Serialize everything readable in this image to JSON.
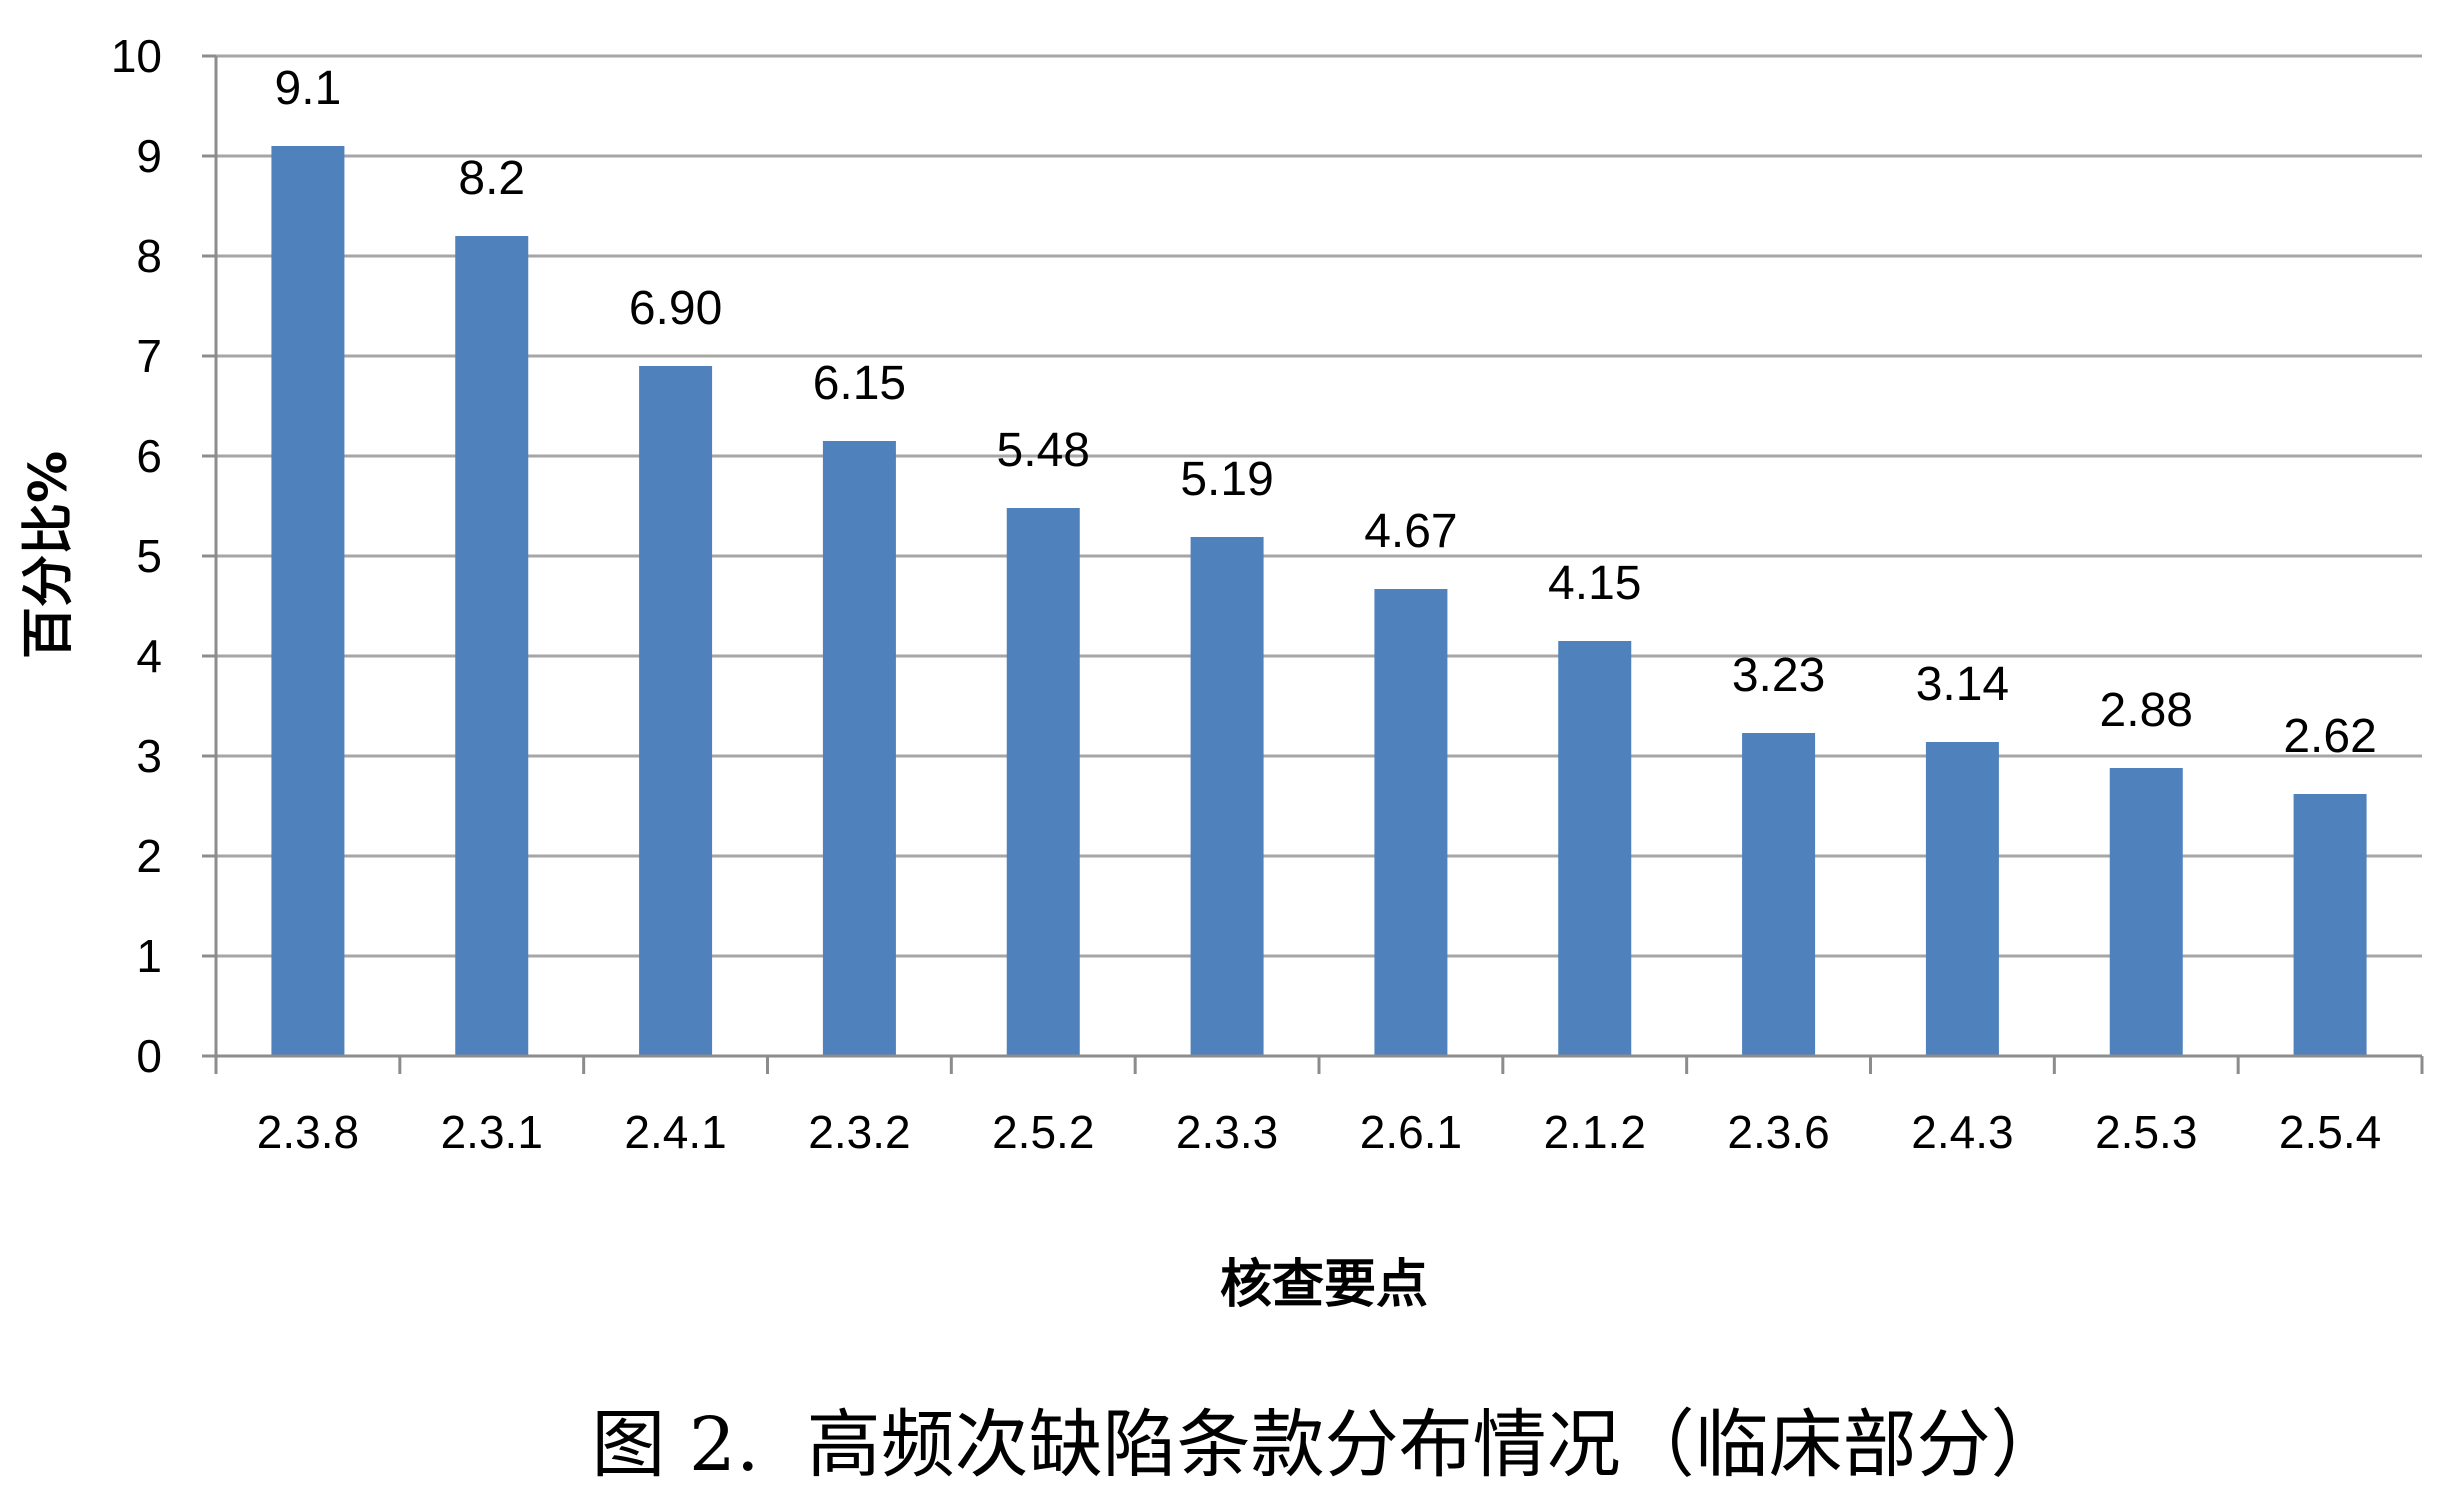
{
  "chart_data": {
    "type": "bar",
    "categories": [
      "2.3.8",
      "2.3.1",
      "2.4.1",
      "2.3.2",
      "2.5.2",
      "2.3.3",
      "2.6.1",
      "2.1.2",
      "2.3.6",
      "2.4.3",
      "2.5.3",
      "2.5.4"
    ],
    "values": [
      9.1,
      8.2,
      6.9,
      6.15,
      5.48,
      5.19,
      4.67,
      4.15,
      3.23,
      3.14,
      2.88,
      2.62
    ],
    "value_labels": [
      "9.1",
      "8.2",
      "6.90",
      "6.15",
      "5.48",
      "5.19",
      "4.67",
      "4.15",
      "3.23",
      "3.14",
      "2.88",
      "2.62"
    ],
    "ylim": [
      0,
      10
    ],
    "yticks": [
      "0",
      "1",
      "2",
      "3",
      "4",
      "5",
      "6",
      "7",
      "8",
      "9",
      "10"
    ],
    "xlabel": "核查要点",
    "ylabel": "百分比%",
    "grid": true,
    "bar_color": "#4f81bd",
    "grid_color": "#a6a6a6"
  },
  "caption": "图 2.  高频次缺陷条款分布情况（临床部分）"
}
